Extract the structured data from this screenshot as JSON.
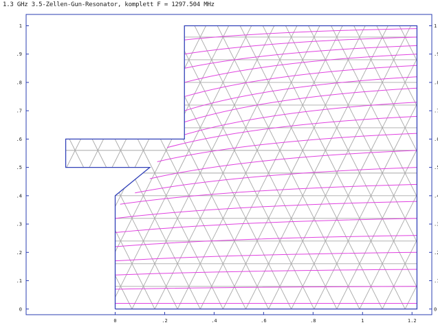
{
  "header": {
    "title": "1.3 GHz 3.5-Zellen-Gun-Resonator, komplett  F = 1297.504 MHz"
  },
  "colors": {
    "frame": "#2a3cb0",
    "geometry": "#3040b8",
    "mesh": "#a8a8a8",
    "field_lines": "#e040e0"
  },
  "chart_data": {
    "type": "line",
    "title": "1.3 GHz 3.5-Zellen-Gun-Resonator, komplett  F = 1297.504 MHz",
    "xlabel": "",
    "ylabel": "",
    "xlim": [
      -0.36,
      1.28
    ],
    "ylim": [
      -0.02,
      1.04
    ],
    "x_ticks": [
      {
        "value": 0.0,
        "label": "0"
      },
      {
        "value": 0.2,
        "label": ".2"
      },
      {
        "value": 0.4,
        "label": ".4"
      },
      {
        "value": 0.6,
        "label": ".6"
      },
      {
        "value": 0.8,
        "label": ".8"
      },
      {
        "value": 1.0,
        "label": "1"
      },
      {
        "value": 1.2,
        "label": "1.2"
      }
    ],
    "y_ticks": [
      {
        "value": 0.0,
        "label": "0"
      },
      {
        "value": 0.1,
        "label": ".1"
      },
      {
        "value": 0.2,
        "label": ".2"
      },
      {
        "value": 0.3,
        "label": ".3"
      },
      {
        "value": 0.4,
        "label": ".4"
      },
      {
        "value": 0.5,
        "label": ".5"
      },
      {
        "value": 0.6,
        "label": ".6"
      },
      {
        "value": 0.7,
        "label": ".7"
      },
      {
        "value": 0.8,
        "label": ".8"
      },
      {
        "value": 0.9,
        "label": ".9"
      },
      {
        "value": 1.0,
        "label": "1"
      }
    ],
    "boundary": [
      [
        0.0,
        0.0
      ],
      [
        1.22,
        0.0
      ],
      [
        1.22,
        1.0
      ],
      [
        0.28,
        1.0
      ],
      [
        0.28,
        0.6
      ],
      [
        0.14,
        0.6
      ],
      [
        0.14,
        0.6
      ],
      [
        -0.2,
        0.6
      ],
      [
        -0.2,
        0.5
      ],
      [
        0.14,
        0.5
      ],
      [
        0.14,
        0.5
      ],
      [
        0.0,
        0.4
      ],
      [
        0.0,
        0.0
      ]
    ],
    "mesh": {
      "x_start": 0.0,
      "x_end": 1.22,
      "y_start": 0.0,
      "y_end": 1.0,
      "cell_width": 0.092,
      "row_height": 0.08
    },
    "field_lines": [
      {
        "start": [
          0.0,
          0.02
        ],
        "end": [
          1.22,
          0.02
        ]
      },
      {
        "start": [
          0.0,
          0.07
        ],
        "end": [
          1.22,
          0.08
        ]
      },
      {
        "start": [
          0.0,
          0.12
        ],
        "end": [
          1.22,
          0.14
        ]
      },
      {
        "start": [
          0.0,
          0.17
        ],
        "end": [
          1.22,
          0.2
        ]
      },
      {
        "start": [
          0.0,
          0.22
        ],
        "end": [
          1.22,
          0.26
        ]
      },
      {
        "start": [
          0.0,
          0.27
        ],
        "end": [
          1.22,
          0.32
        ]
      },
      {
        "start": [
          0.0,
          0.32
        ],
        "end": [
          1.22,
          0.38
        ]
      },
      {
        "start": [
          0.02,
          0.37
        ],
        "end": [
          1.22,
          0.44
        ]
      },
      {
        "start": [
          0.08,
          0.41
        ],
        "end": [
          1.22,
          0.5
        ]
      },
      {
        "start": [
          0.14,
          0.46
        ],
        "end": [
          1.22,
          0.56
        ]
      },
      {
        "start": [
          0.17,
          0.52
        ],
        "end": [
          1.22,
          0.62
        ]
      },
      {
        "start": [
          0.21,
          0.57
        ],
        "end": [
          1.22,
          0.68
        ]
      },
      {
        "start": [
          0.26,
          0.61
        ],
        "end": [
          1.22,
          0.73
        ]
      },
      {
        "start": [
          0.28,
          0.66
        ],
        "end": [
          1.22,
          0.78
        ]
      },
      {
        "start": [
          0.28,
          0.7
        ],
        "end": [
          1.22,
          0.82
        ]
      },
      {
        "start": [
          0.28,
          0.75
        ],
        "end": [
          1.22,
          0.86
        ]
      },
      {
        "start": [
          0.28,
          0.8
        ],
        "end": [
          1.22,
          0.9
        ]
      },
      {
        "start": [
          0.28,
          0.85
        ],
        "end": [
          1.22,
          0.93
        ]
      },
      {
        "start": [
          0.28,
          0.9
        ],
        "end": [
          1.22,
          0.96
        ]
      },
      {
        "start": [
          0.28,
          0.95
        ],
        "end": [
          1.22,
          0.99
        ]
      }
    ]
  }
}
